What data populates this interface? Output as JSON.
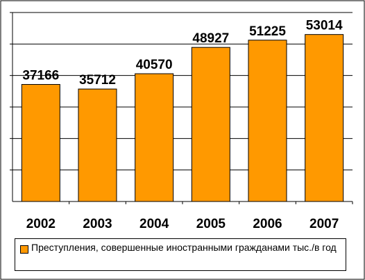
{
  "chart_data": {
    "type": "bar",
    "categories": [
      "2002",
      "2003",
      "2004",
      "2005",
      "2006",
      "2007"
    ],
    "values": [
      37166,
      35712,
      40570,
      48927,
      51225,
      53014
    ],
    "data_labels": [
      "37166",
      "35712",
      "40570",
      "48927",
      "51225",
      "53014"
    ],
    "legend": [
      "Преступления, совершенные иностранными гражданами тыс./в год"
    ],
    "legend_position": "bottom",
    "ylim": [
      0,
      60000
    ],
    "gridline_step": 10000,
    "grid": true,
    "y_tick_labels_visible": false,
    "colors": {
      "bar": "#ff9900",
      "plot_background": "#ffffff",
      "gridline": "#000000",
      "outer_frame": "#000000"
    }
  }
}
